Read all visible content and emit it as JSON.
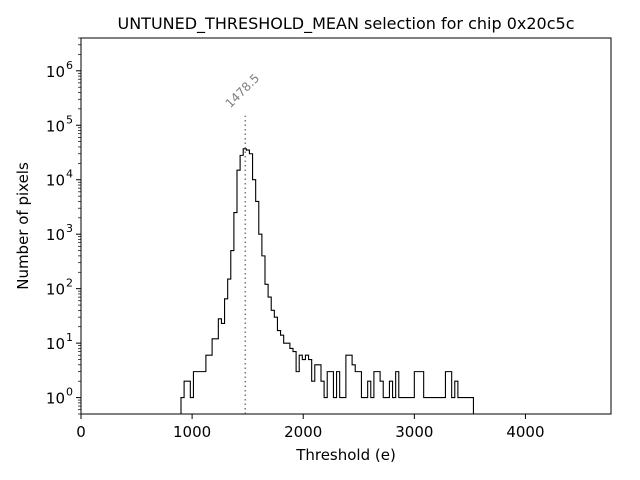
{
  "chart_data": {
    "type": "histogram",
    "title": "UNTUNED_THRESHOLD_MEAN selection for chip 0x20c5c",
    "xlabel": "Threshold (e)",
    "ylabel": "Number of pixels",
    "yscale": "log",
    "xlim": [
      0,
      4770
    ],
    "ylim": [
      0.5,
      4000000
    ],
    "x_ticks": [
      0,
      1000,
      2000,
      3000,
      4000
    ],
    "x_tick_labels": [
      "0",
      "1000",
      "2000",
      "3000",
      "4000"
    ],
    "y_ticks": [
      1,
      10,
      100,
      1000,
      10000,
      100000,
      1000000
    ],
    "y_tick_labels": [
      {
        "base": "10",
        "exp": "0"
      },
      {
        "base": "10",
        "exp": "1"
      },
      {
        "base": "10",
        "exp": "2"
      },
      {
        "base": "10",
        "exp": "3"
      },
      {
        "base": "10",
        "exp": "4"
      },
      {
        "base": "10",
        "exp": "5"
      },
      {
        "base": "10",
        "exp": "6"
      }
    ],
    "vline": {
      "x": 1478.5,
      "label": "1478.5",
      "top_value": 150000
    },
    "bin_width": 28,
    "bin_start": 900,
    "counts": [
      1,
      2,
      2,
      1,
      3,
      3,
      3,
      3,
      6,
      6,
      12,
      12,
      28,
      23,
      65,
      150,
      500,
      2500,
      15000,
      28000,
      37000,
      35000,
      30000,
      10000,
      4000,
      1000,
      400,
      120,
      70,
      40,
      30,
      17,
      14,
      10,
      10,
      8,
      7,
      3,
      6,
      5,
      6,
      5,
      2,
      4,
      4,
      2,
      1,
      3,
      3,
      1,
      3,
      1,
      1,
      6,
      6,
      4,
      3,
      3,
      1,
      1,
      2,
      1,
      3,
      3,
      2,
      1,
      1,
      2,
      1,
      3,
      1,
      1,
      1,
      1,
      1,
      3,
      3,
      3,
      1,
      1,
      1,
      1,
      1,
      1,
      1,
      3,
      3,
      1,
      2,
      1,
      1,
      1,
      1,
      1
    ]
  }
}
